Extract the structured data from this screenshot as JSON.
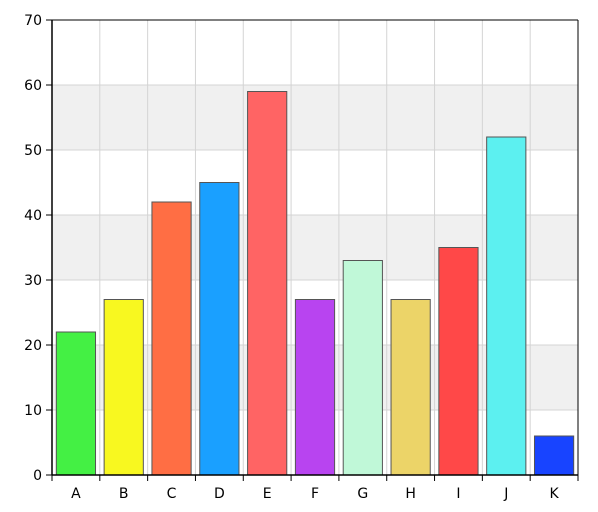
{
  "chart_data": {
    "type": "bar",
    "categories": [
      "A",
      "B",
      "C",
      "D",
      "E",
      "F",
      "G",
      "H",
      "I",
      "J",
      "K"
    ],
    "values": [
      22,
      27,
      42,
      45,
      59,
      27,
      33,
      27,
      35,
      52,
      6
    ],
    "colors": [
      "#44f044",
      "#f8f820",
      "#ff6e44",
      "#1aa0ff",
      "#ff6464",
      "#b844f0",
      "#c0f8d8",
      "#ecd468",
      "#ff4848",
      "#5cf0f0",
      "#1844ff"
    ],
    "ylim": [
      0,
      70
    ],
    "yticks": [
      0,
      10,
      20,
      30,
      40,
      50,
      60,
      70
    ],
    "grid": true,
    "title": "",
    "xlabel": "",
    "ylabel": ""
  }
}
